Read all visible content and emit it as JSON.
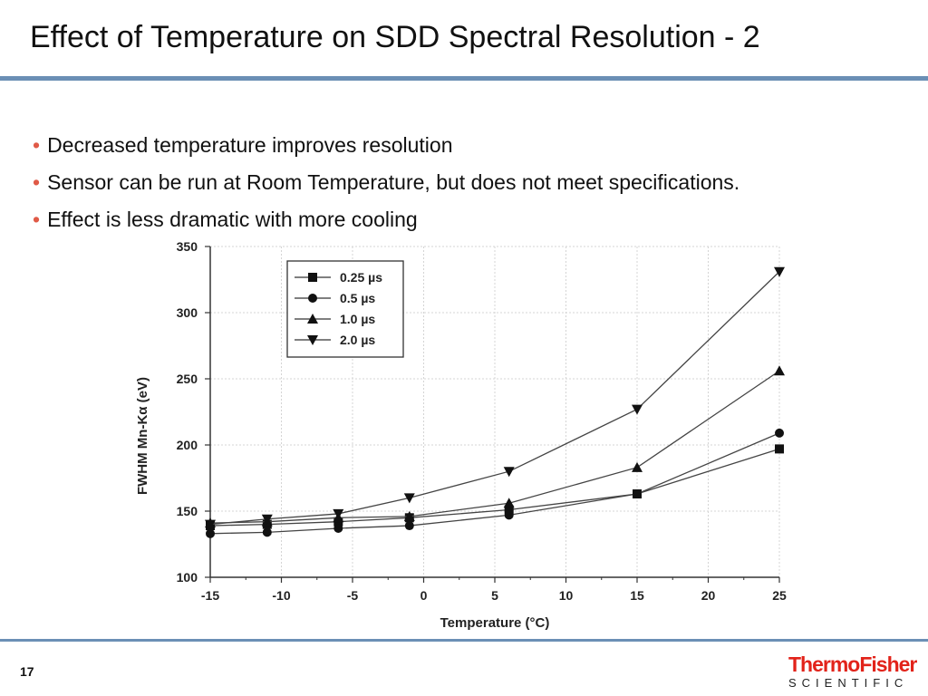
{
  "slide": {
    "title": "Effect of Temperature on SDD Spectral Resolution - 2",
    "bullets": [
      "Decreased temperature improves resolution",
      "Sensor can be run at Room Temperature, but does not meet specifications.",
      "Effect is less dramatic with more cooling"
    ],
    "bullet_symbol": "•",
    "page_number": "17",
    "logo": {
      "top": "ThermoFisher",
      "bottom": "SCIENTIFIC"
    },
    "colors": {
      "accent_rule": "#6b8fb5",
      "bullet": "#e05a47",
      "logo_red": "#e2231a"
    }
  },
  "chart_data": {
    "type": "line",
    "xlabel": "Temperature (°C)",
    "ylabel": "FWHM Mn-Kα (eV)",
    "xlim": [
      -15,
      25
    ],
    "ylim": [
      100,
      350
    ],
    "xticks": [
      -15,
      -10,
      -5,
      0,
      5,
      10,
      15,
      20,
      25
    ],
    "yticks": [
      100,
      150,
      200,
      250,
      300,
      350
    ],
    "grid": true,
    "legend_position": "top-left",
    "series": [
      {
        "name": "0.25 µs",
        "marker": "square",
        "x": [
          -15,
          -11,
          -6,
          -1,
          6,
          15,
          25
        ],
        "y": [
          139,
          140,
          142,
          145,
          151,
          163,
          197
        ]
      },
      {
        "name": "0.5 µs",
        "marker": "circle",
        "x": [
          -15,
          -11,
          -6,
          -1,
          6,
          15,
          25
        ],
        "y": [
          133,
          134,
          137,
          139,
          147,
          163,
          209
        ]
      },
      {
        "name": "1.0 µs",
        "marker": "triangle-up",
        "x": [
          -15,
          -11,
          -6,
          -1,
          6,
          15,
          25
        ],
        "y": [
          141,
          142,
          145,
          146,
          156,
          183,
          256
        ]
      },
      {
        "name": "2.0 µs",
        "marker": "triangle-down",
        "x": [
          -15,
          -11,
          -6,
          -1,
          6,
          15,
          25
        ],
        "y": [
          140,
          144,
          148,
          160,
          180,
          227,
          331
        ]
      }
    ]
  }
}
